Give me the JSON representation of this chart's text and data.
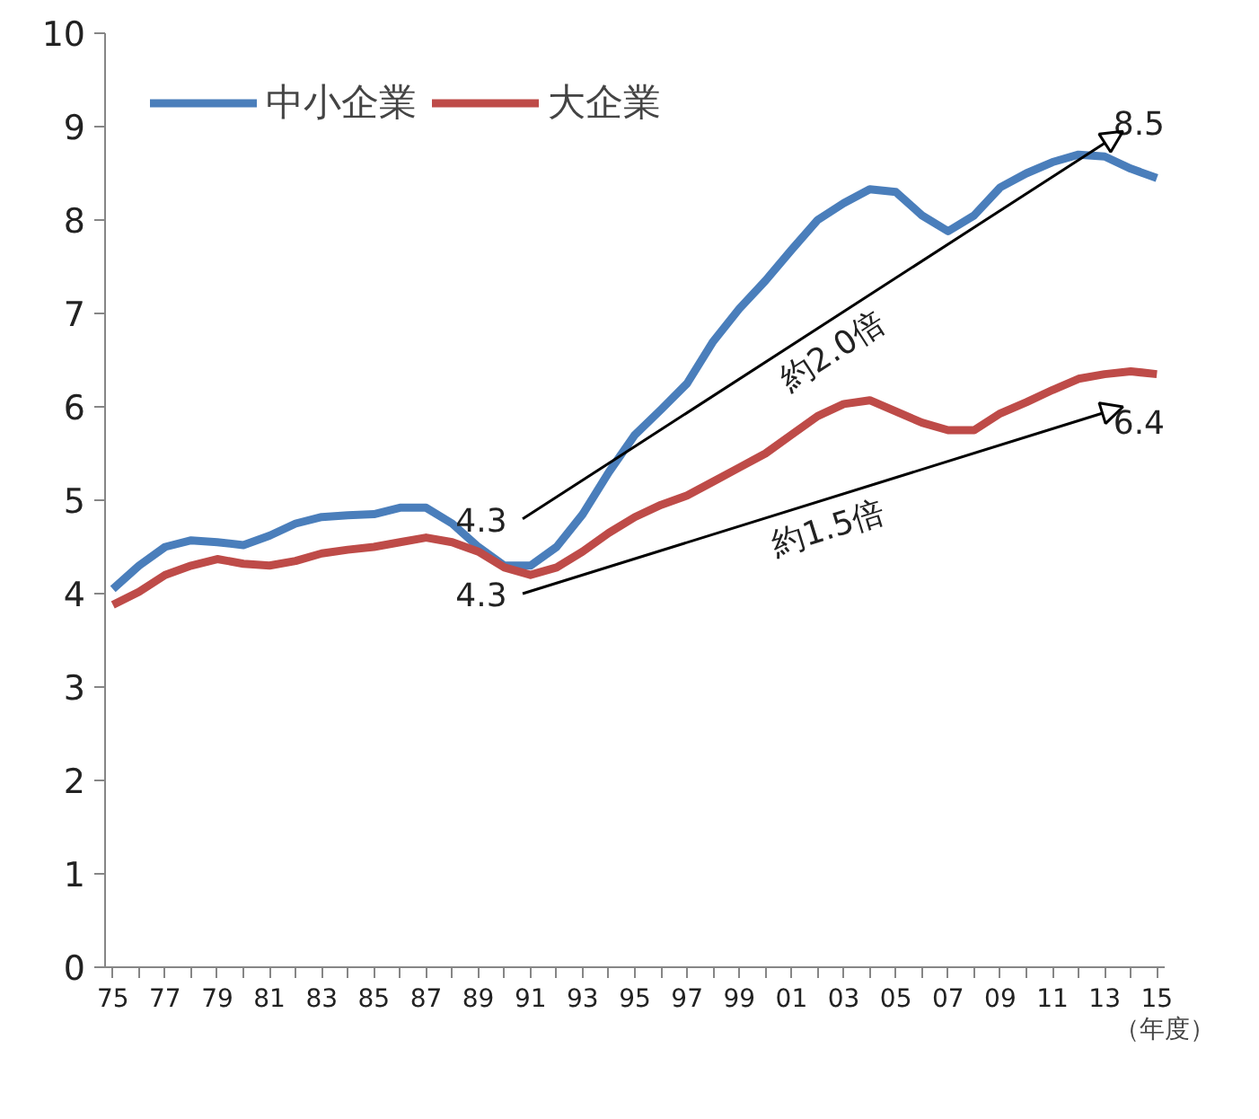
{
  "chart_data": {
    "type": "line",
    "categories": [
      "75",
      null,
      "77",
      null,
      "79",
      null,
      "81",
      null,
      "83",
      null,
      "85",
      null,
      "87",
      null,
      "89",
      null,
      "91",
      null,
      "93",
      null,
      "95",
      null,
      "97",
      null,
      "99",
      null,
      "01",
      null,
      "03",
      null,
      "05",
      null,
      "07",
      null,
      "09",
      null,
      "11",
      null,
      "13",
      null,
      "15"
    ],
    "xlabel": "（年度）",
    "ylim": [
      0,
      10
    ],
    "yticks": [
      0,
      1,
      2,
      3,
      4,
      5,
      6,
      7,
      8,
      9,
      10
    ],
    "grid": false,
    "legend": "top left",
    "marker": "none",
    "line_style": "solid",
    "series": [
      {
        "name": "中小企業",
        "color": "#4a7ebb",
        "values": [
          4.05,
          4.3,
          4.5,
          4.57,
          4.55,
          4.52,
          4.62,
          4.75,
          4.82,
          4.84,
          4.85,
          4.92,
          4.92,
          4.75,
          4.5,
          4.3,
          4.3,
          4.5,
          4.85,
          5.3,
          5.7,
          5.97,
          6.25,
          6.7,
          7.05,
          7.35,
          7.68,
          8.0,
          8.18,
          8.33,
          8.3,
          8.05,
          7.88,
          8.05,
          8.35,
          8.5,
          8.62,
          8.7,
          8.68,
          8.55,
          8.45
        ]
      },
      {
        "name": "大企業",
        "color": "#be4b48",
        "values": [
          3.88,
          4.02,
          4.2,
          4.3,
          4.37,
          4.32,
          4.3,
          4.35,
          4.43,
          4.47,
          4.5,
          4.55,
          4.6,
          4.55,
          4.45,
          4.28,
          4.2,
          4.28,
          4.45,
          4.65,
          4.82,
          4.95,
          5.05,
          5.2,
          5.35,
          5.5,
          5.7,
          5.9,
          6.03,
          6.07,
          5.95,
          5.83,
          5.75,
          5.75,
          5.93,
          6.05,
          6.18,
          6.3,
          6.35,
          6.38,
          6.35
        ]
      }
    ],
    "annotations": [
      {
        "text": "4.3",
        "x": "91",
        "y": 4.3
      },
      {
        "text": "4.3",
        "x": "91",
        "y": 4.3
      },
      {
        "text": "8.5",
        "x": "15",
        "y": 8.5
      },
      {
        "text": "6.4",
        "x": "15",
        "y": 6.4
      },
      "約2.0倍",
      "約1.5倍"
    ]
  }
}
